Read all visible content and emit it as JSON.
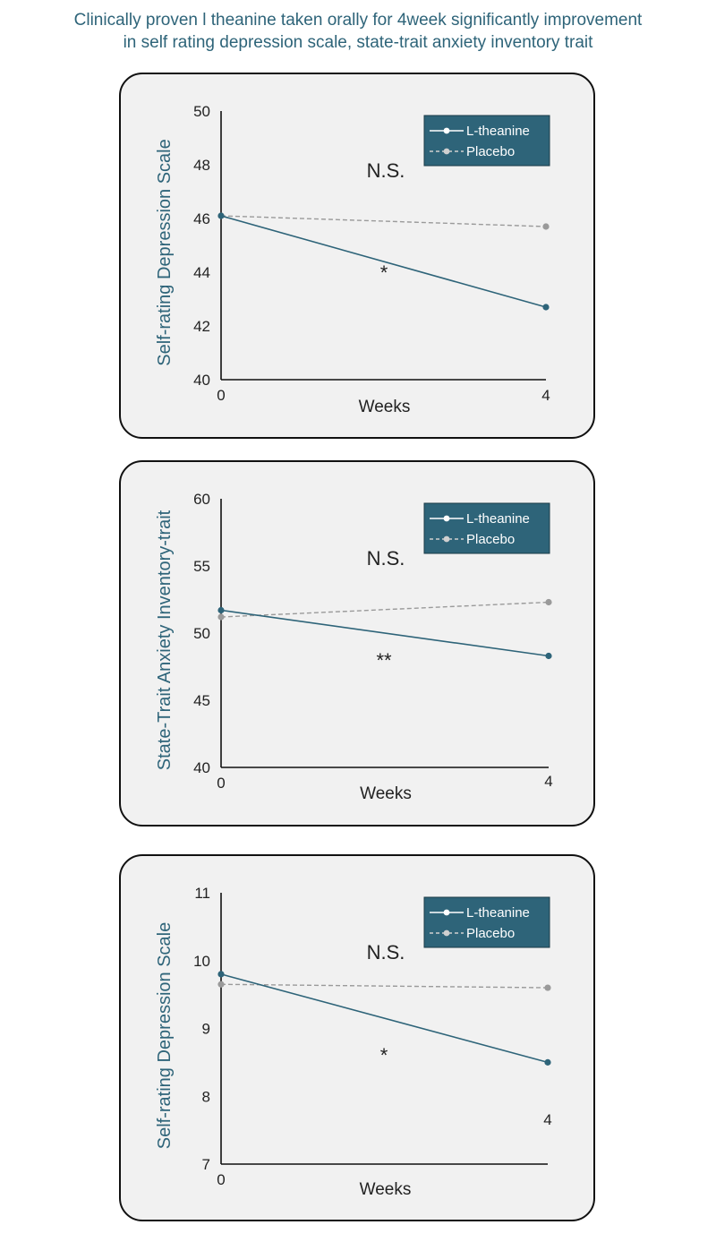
{
  "headline": {
    "line1": "Clinically proven l theanine taken orally for 4week significantly improvement",
    "line2": "in self rating depression scale, state-trait anxiety inventory trait"
  },
  "colors": {
    "ltheanine": "#2e6479",
    "placebo": "#9a9a9a",
    "legend_bg": "#2e6479",
    "panel_bg": "#f1f1f1",
    "title": "#2e6479"
  },
  "chart_data": [
    {
      "type": "line",
      "ylabel": "Self-rating Depression Scale",
      "xlabel": "Weeks",
      "x": [
        0,
        4
      ],
      "x_ticks": [
        "0",
        "4"
      ],
      "ylim": [
        40,
        50
      ],
      "y_ticks": [
        40,
        42,
        44,
        46,
        48,
        50
      ],
      "series": [
        {
          "name": "L-theanine",
          "values": [
            46.1,
            42.7
          ],
          "style": "solid"
        },
        {
          "name": "Placebo",
          "values": [
            46.1,
            45.7
          ],
          "style": "dashed"
        }
      ],
      "annotations": [
        "N.S.",
        "*"
      ],
      "legend": "top-right",
      "grid": false
    },
    {
      "type": "line",
      "ylabel": "State-Trait Anxiety Inventory-trait",
      "xlabel": "Weeks",
      "x": [
        0,
        4
      ],
      "x_ticks": [
        "0",
        "4"
      ],
      "ylim": [
        40,
        60
      ],
      "y_ticks": [
        40,
        45,
        50,
        55,
        60
      ],
      "series": [
        {
          "name": "L-theanine",
          "values": [
            51.7,
            48.3
          ],
          "style": "solid"
        },
        {
          "name": "Placebo",
          "values": [
            51.2,
            52.3
          ],
          "style": "dashed"
        }
      ],
      "annotations": [
        "N.S.",
        "**"
      ],
      "legend": "top-right",
      "grid": false
    },
    {
      "type": "line",
      "ylabel": "Self-rating Depression Scale",
      "xlabel": "Weeks",
      "x": [
        0,
        4
      ],
      "x_ticks": [
        "0",
        "4"
      ],
      "ylim": [
        7,
        11
      ],
      "y_ticks": [
        7,
        8,
        9,
        10,
        11
      ],
      "series": [
        {
          "name": "L-theanine",
          "values": [
            9.8,
            8.5
          ],
          "style": "solid"
        },
        {
          "name": "Placebo",
          "values": [
            9.65,
            9.6
          ],
          "style": "dashed"
        }
      ],
      "annotations": [
        "N.S.",
        "*"
      ],
      "legend": "top-right",
      "grid": false
    }
  ]
}
